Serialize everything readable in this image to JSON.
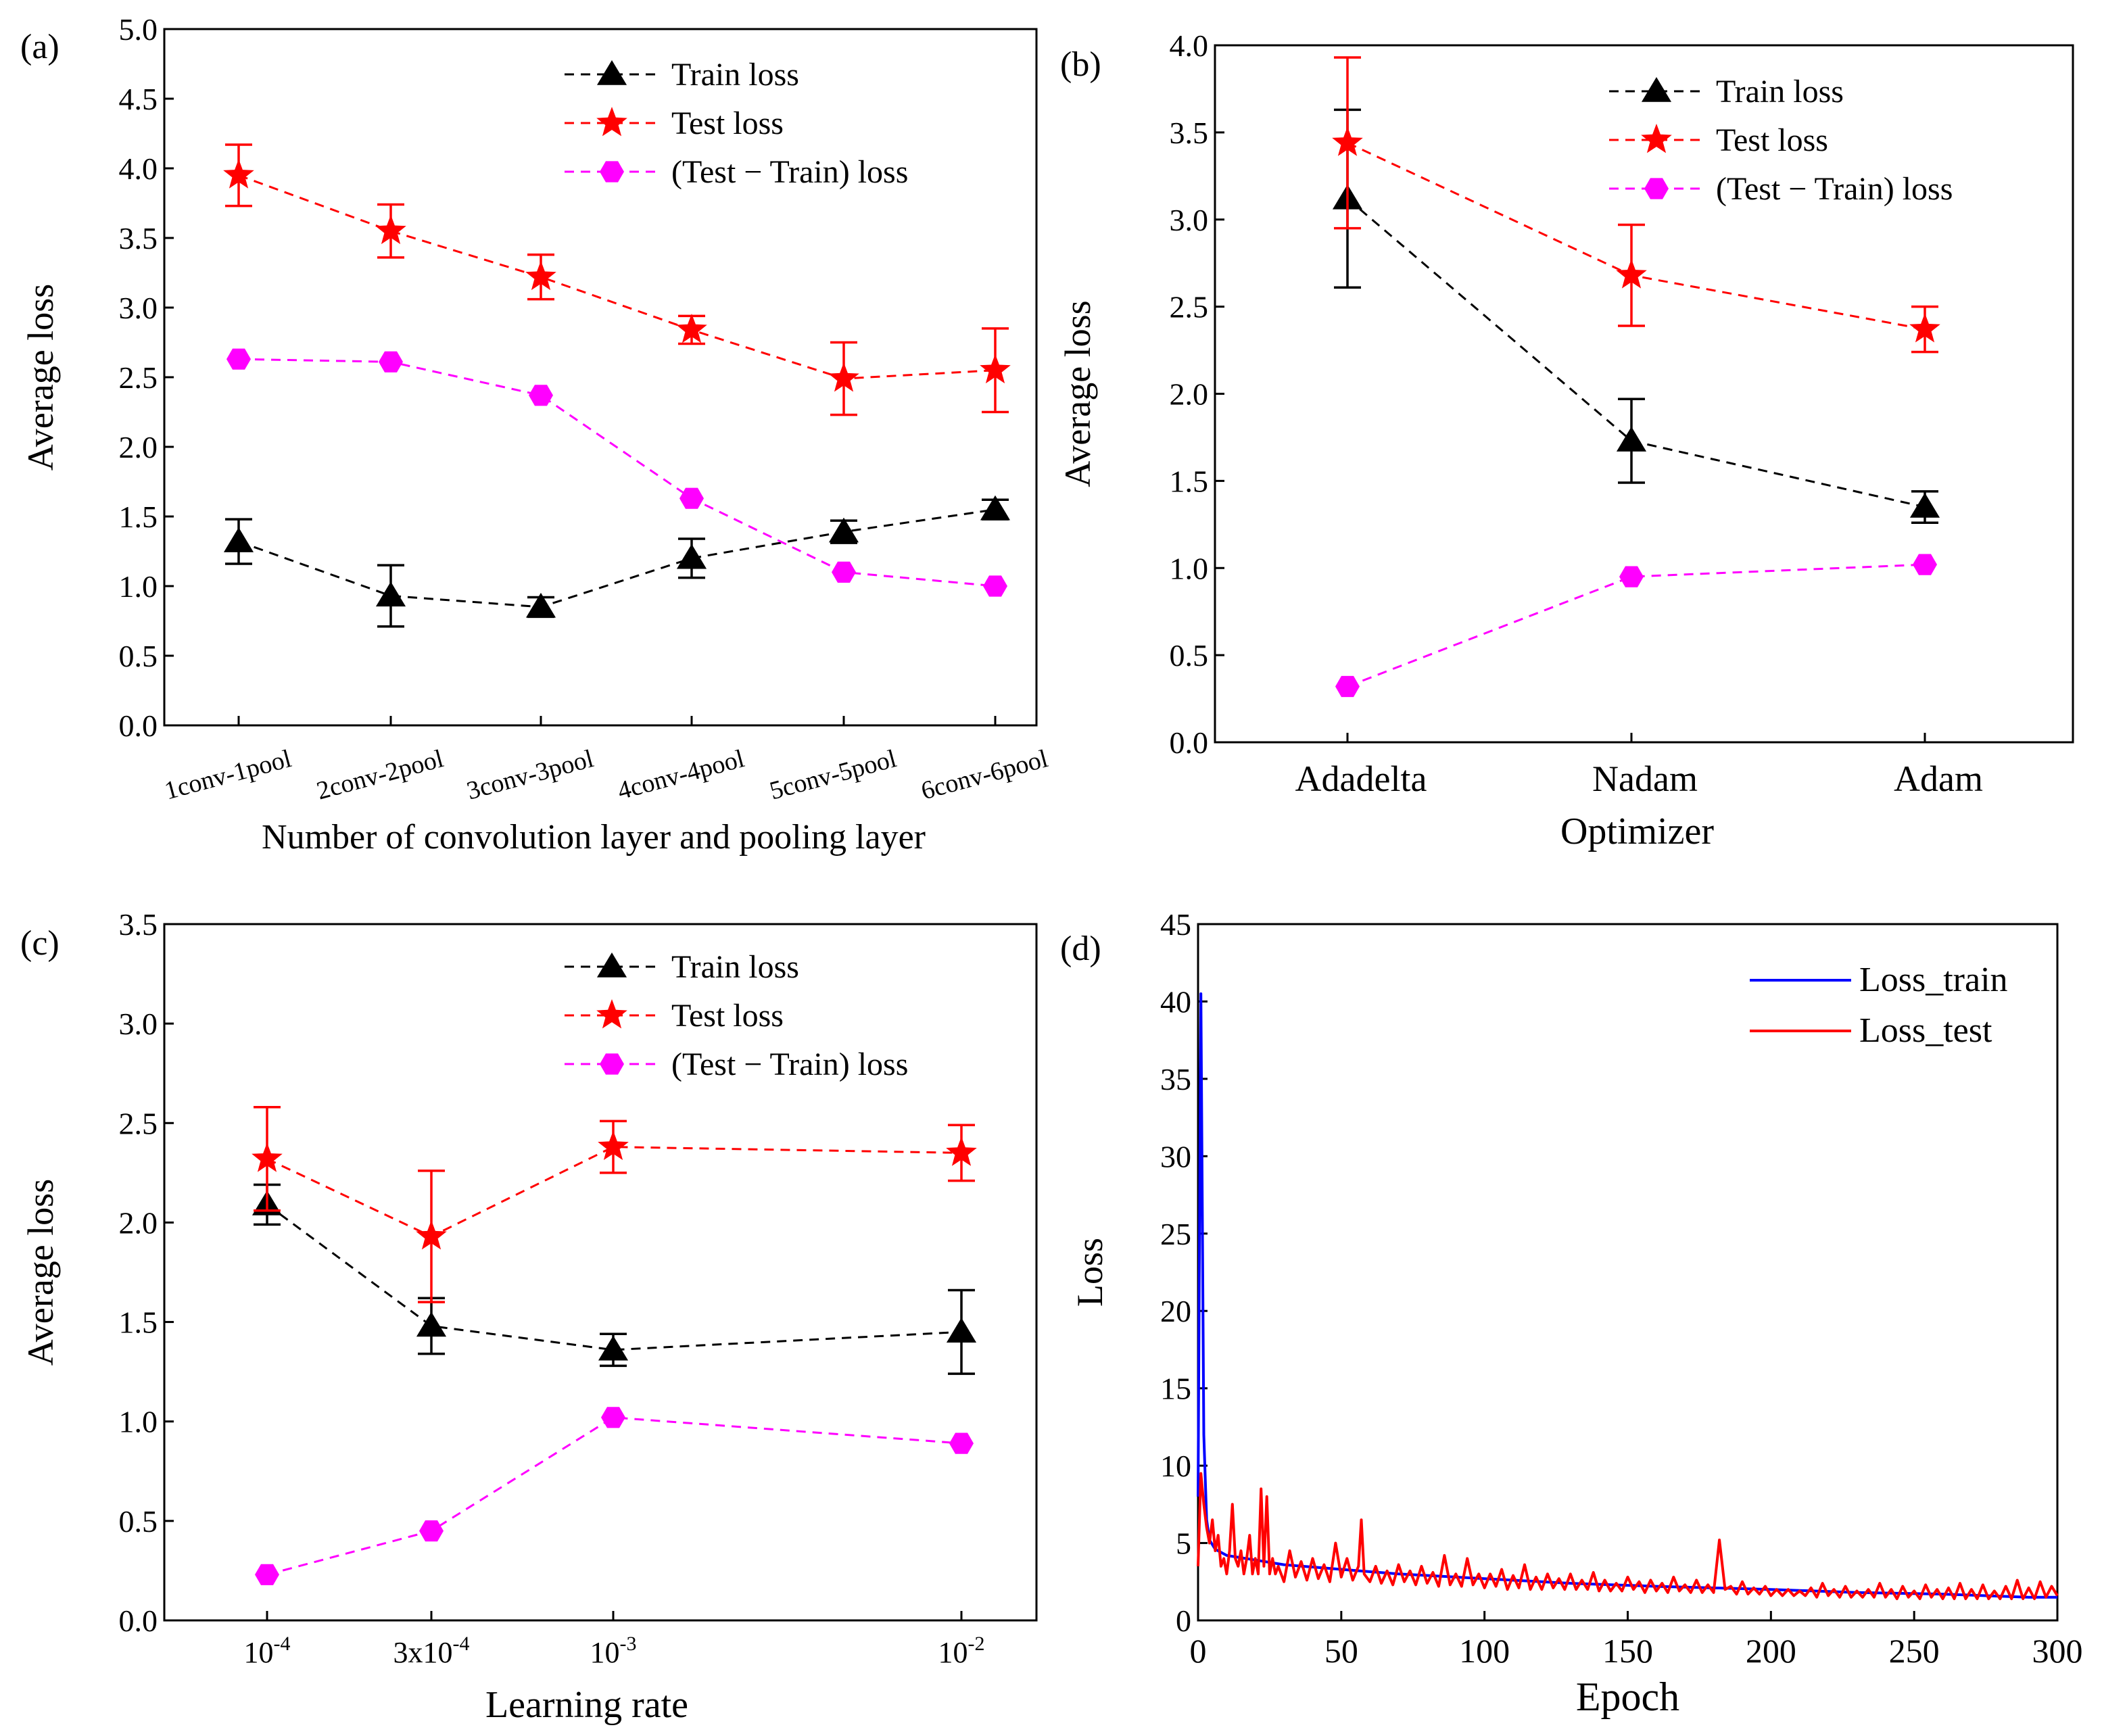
{
  "chart_data": [
    {
      "type": "line",
      "panel_label": "(a)",
      "xlabel": "Number of convolution layer and pooling layer",
      "ylabel": "Average  loss",
      "categories": [
        "1conv-1pool",
        "2conv-2pool",
        "3conv-3pool",
        "4conv-4pool",
        "5conv-5pool",
        "6conv-6pool"
      ],
      "ylim": [
        0,
        5.0
      ],
      "yticks": [
        "0.0",
        "0.5",
        "1.0",
        "1.5",
        "2.0",
        "2.5",
        "3.0",
        "3.5",
        "4.0",
        "4.5",
        "5.0"
      ],
      "legend_position": "top-right",
      "series": [
        {
          "name": "Train loss",
          "color": "#000000",
          "marker": "triangle",
          "values": [
            1.32,
            0.93,
            0.85,
            1.2,
            1.39,
            1.55
          ],
          "errors": [
            0.16,
            0.22,
            0.07,
            0.14,
            0.08,
            0.07
          ]
        },
        {
          "name": "Test loss",
          "color": "#ff0000",
          "marker": "star",
          "values": [
            3.95,
            3.55,
            3.22,
            2.84,
            2.49,
            2.55
          ],
          "errors": [
            0.22,
            0.19,
            0.16,
            0.1,
            0.26,
            0.3
          ]
        },
        {
          "name": "(Test − Train) loss",
          "color": "#ff00ff",
          "marker": "hexagon",
          "values": [
            2.63,
            2.61,
            2.37,
            1.63,
            1.1,
            1.0
          ],
          "errors": null
        }
      ]
    },
    {
      "type": "line",
      "panel_label": "(b)",
      "xlabel": "Optimizer",
      "ylabel": "Average  loss",
      "categories": [
        "Adadelta",
        "Nadam",
        "Adam"
      ],
      "ylim": [
        0,
        4.0
      ],
      "yticks": [
        "0.0",
        "0.5",
        "1.0",
        "1.5",
        "2.0",
        "2.5",
        "3.0",
        "3.5",
        "4.0"
      ],
      "legend_position": "top-right",
      "series": [
        {
          "name": "Train loss",
          "color": "#000000",
          "marker": "triangle",
          "values": [
            3.12,
            1.73,
            1.35
          ],
          "errors": [
            0.51,
            0.24,
            0.09
          ]
        },
        {
          "name": "Test loss",
          "color": "#ff0000",
          "marker": "star",
          "values": [
            3.44,
            2.68,
            2.37
          ],
          "errors": [
            0.49,
            0.29,
            0.13
          ]
        },
        {
          "name": "(Test − Train) loss",
          "color": "#ff00ff",
          "marker": "hexagon",
          "values": [
            0.32,
            0.95,
            1.02
          ],
          "errors": null
        }
      ]
    },
    {
      "type": "line",
      "panel_label": "(c)",
      "xlabel": "Learning rate",
      "ylabel": "Average  loss",
      "categories": [
        {
          "base": "10",
          "exp": "-4"
        },
        {
          "base": "3x10",
          "exp": "-4"
        },
        {
          "base": "10",
          "exp": "-3"
        },
        {
          "base": "10",
          "exp": "-2"
        }
      ],
      "x_log": [
        -4,
        -3.5229,
        -3,
        -2
      ],
      "ylim": [
        0,
        3.5
      ],
      "yticks": [
        "0.0",
        "0.5",
        "1.0",
        "1.5",
        "2.0",
        "2.5",
        "3.0",
        "3.5"
      ],
      "legend_position": "top-right",
      "series": [
        {
          "name": "Train loss",
          "color": "#000000",
          "marker": "triangle",
          "values": [
            2.09,
            1.48,
            1.36,
            1.45
          ],
          "errors": [
            0.1,
            0.14,
            0.08,
            0.21
          ]
        },
        {
          "name": "Test loss",
          "color": "#ff0000",
          "marker": "star",
          "values": [
            2.32,
            1.93,
            2.38,
            2.35
          ],
          "errors": [
            0.26,
            0.33,
            0.13,
            0.14
          ]
        },
        {
          "name": "(Test − Train) loss",
          "color": "#ff00ff",
          "marker": "hexagon",
          "values": [
            0.23,
            0.45,
            1.02,
            0.89
          ],
          "errors": null
        }
      ]
    },
    {
      "type": "line",
      "panel_label": "(d)",
      "xlabel": "Epoch",
      "ylabel": "Loss",
      "xlim": [
        0,
        300
      ],
      "ylim": [
        0,
        45
      ],
      "xticks": [
        "0",
        "50",
        "100",
        "150",
        "200",
        "250",
        "300"
      ],
      "yticks": [
        "0",
        "5",
        "10",
        "15",
        "20",
        "25",
        "30",
        "35",
        "40",
        "45"
      ],
      "legend_position": "top-right",
      "series": [
        {
          "name": "Loss_train",
          "color": "#0000ff",
          "points": [
            [
              0,
              8
            ],
            [
              1,
              40.5
            ],
            [
              2,
              12
            ],
            [
              3,
              6.5
            ],
            [
              4,
              5.2
            ],
            [
              6,
              4.6
            ],
            [
              10,
              4.2
            ],
            [
              20,
              3.9
            ],
            [
              30,
              3.6
            ],
            [
              50,
              3.3
            ],
            [
              70,
              3.0
            ],
            [
              100,
              2.7
            ],
            [
              130,
              2.4
            ],
            [
              160,
              2.2
            ],
            [
              200,
              2.0
            ],
            [
              230,
              1.8
            ],
            [
              260,
              1.7
            ],
            [
              290,
              1.5
            ],
            [
              300,
              1.5
            ]
          ]
        },
        {
          "name": "Loss_test",
          "color": "#ff0000",
          "points": [
            [
              0,
              3.5
            ],
            [
              1,
              9.5
            ],
            [
              2,
              7.5
            ],
            [
              3,
              6
            ],
            [
              4,
              5
            ],
            [
              5,
              6.5
            ],
            [
              6,
              4.5
            ],
            [
              7,
              5.5
            ],
            [
              8,
              3.5
            ],
            [
              9,
              4
            ],
            [
              10,
              3
            ],
            [
              11,
              4.5
            ],
            [
              12,
              7.5
            ],
            [
              13,
              4
            ],
            [
              14,
              3.5
            ],
            [
              15,
              4.5
            ],
            [
              16,
              3
            ],
            [
              17,
              4
            ],
            [
              18,
              5.5
            ],
            [
              19,
              3
            ],
            [
              20,
              4
            ],
            [
              21,
              3
            ],
            [
              22,
              8.5
            ],
            [
              23,
              3.5
            ],
            [
              24,
              8
            ],
            [
              25,
              3
            ],
            [
              26,
              4
            ],
            [
              27,
              3
            ],
            [
              28,
              3.5
            ],
            [
              30,
              2.5
            ],
            [
              32,
              4.5
            ],
            [
              34,
              2.8
            ],
            [
              36,
              3.8
            ],
            [
              38,
              2.6
            ],
            [
              40,
              4
            ],
            [
              42,
              2.7
            ],
            [
              44,
              3.6
            ],
            [
              46,
              2.5
            ],
            [
              48,
              5
            ],
            [
              50,
              2.8
            ],
            [
              52,
              4
            ],
            [
              54,
              2.6
            ],
            [
              56,
              3.5
            ],
            [
              57,
              6.5
            ],
            [
              58,
              3
            ],
            [
              60,
              2.5
            ],
            [
              62,
              3.5
            ],
            [
              64,
              2.4
            ],
            [
              66,
              3.2
            ],
            [
              68,
              2.3
            ],
            [
              70,
              3.6
            ],
            [
              72,
              2.5
            ],
            [
              74,
              3.2
            ],
            [
              76,
              2.3
            ],
            [
              78,
              3.5
            ],
            [
              80,
              2.4
            ],
            [
              82,
              3.1
            ],
            [
              84,
              2.2
            ],
            [
              86,
              4.2
            ],
            [
              88,
              2.3
            ],
            [
              90,
              3
            ],
            [
              92,
              2.2
            ],
            [
              94,
              4
            ],
            [
              96,
              2.3
            ],
            [
              98,
              3
            ],
            [
              100,
              2.1
            ],
            [
              102,
              3
            ],
            [
              104,
              2.2
            ],
            [
              106,
              3.3
            ],
            [
              108,
              2
            ],
            [
              110,
              2.9
            ],
            [
              112,
              2.1
            ],
            [
              114,
              3.6
            ],
            [
              116,
              2
            ],
            [
              118,
              2.8
            ],
            [
              120,
              2
            ],
            [
              122,
              3
            ],
            [
              124,
              2.1
            ],
            [
              126,
              2.7
            ],
            [
              128,
              2
            ],
            [
              130,
              3
            ],
            [
              132,
              2
            ],
            [
              134,
              2.6
            ],
            [
              136,
              2
            ],
            [
              138,
              3.1
            ],
            [
              140,
              1.9
            ],
            [
              142,
              2.6
            ],
            [
              144,
              1.9
            ],
            [
              146,
              2.4
            ],
            [
              148,
              1.9
            ],
            [
              150,
              2.8
            ],
            [
              152,
              2
            ],
            [
              154,
              2.5
            ],
            [
              156,
              1.8
            ],
            [
              158,
              2.6
            ],
            [
              160,
              1.9
            ],
            [
              162,
              2.4
            ],
            [
              164,
              1.8
            ],
            [
              166,
              2.8
            ],
            [
              168,
              1.9
            ],
            [
              170,
              2.3
            ],
            [
              172,
              1.8
            ],
            [
              174,
              2.6
            ],
            [
              176,
              1.8
            ],
            [
              178,
              2.3
            ],
            [
              180,
              1.8
            ],
            [
              182,
              5.2
            ],
            [
              184,
              2
            ],
            [
              186,
              2.2
            ],
            [
              188,
              1.7
            ],
            [
              190,
              2.5
            ],
            [
              192,
              1.7
            ],
            [
              194,
              2.1
            ],
            [
              196,
              1.7
            ],
            [
              198,
              2.2
            ],
            [
              200,
              1.6
            ],
            [
              202,
              2
            ],
            [
              204,
              1.6
            ],
            [
              206,
              2
            ],
            [
              208,
              1.6
            ],
            [
              210,
              1.9
            ],
            [
              212,
              1.6
            ],
            [
              214,
              2.1
            ],
            [
              216,
              1.5
            ],
            [
              218,
              2.4
            ],
            [
              220,
              1.6
            ],
            [
              222,
              2
            ],
            [
              224,
              1.5
            ],
            [
              226,
              2.2
            ],
            [
              228,
              1.5
            ],
            [
              230,
              1.9
            ],
            [
              232,
              1.5
            ],
            [
              234,
              2
            ],
            [
              236,
              1.5
            ],
            [
              238,
              2.4
            ],
            [
              240,
              1.5
            ],
            [
              242,
              2
            ],
            [
              244,
              1.4
            ],
            [
              246,
              2.2
            ],
            [
              248,
              1.5
            ],
            [
              250,
              1.9
            ],
            [
              252,
              1.4
            ],
            [
              254,
              2.3
            ],
            [
              256,
              1.5
            ],
            [
              258,
              2
            ],
            [
              260,
              1.4
            ],
            [
              262,
              2.1
            ],
            [
              264,
              1.4
            ],
            [
              266,
              2.4
            ],
            [
              268,
              1.4
            ],
            [
              270,
              2
            ],
            [
              272,
              1.4
            ],
            [
              274,
              2.3
            ],
            [
              276,
              1.4
            ],
            [
              278,
              1.9
            ],
            [
              280,
              1.4
            ],
            [
              282,
              2.2
            ],
            [
              284,
              1.4
            ],
            [
              286,
              2.6
            ],
            [
              288,
              1.4
            ],
            [
              290,
              2.1
            ],
            [
              292,
              1.4
            ],
            [
              294,
              2.5
            ],
            [
              296,
              1.5
            ],
            [
              298,
              2.2
            ],
            [
              300,
              1.6
            ]
          ]
        }
      ]
    }
  ]
}
